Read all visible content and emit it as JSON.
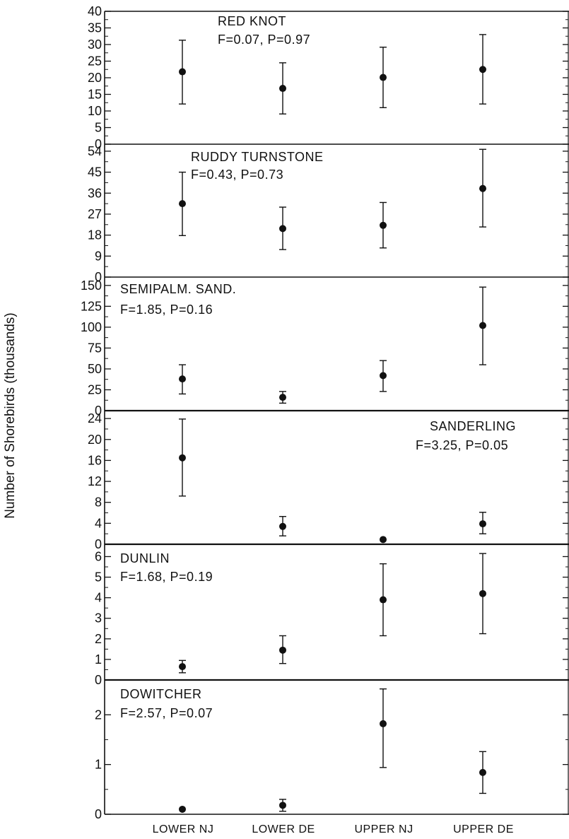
{
  "chart_data": {
    "type": "scatter",
    "ylabel": "Number of Shorebirds (thousands)",
    "categories": [
      "LOWER NJ",
      "LOWER DE",
      "UPPER NJ",
      "UPPER DE"
    ],
    "panels": [
      {
        "species": "RED KNOT",
        "stats": "F=0.07, P=0.97",
        "ylim": [
          0,
          40
        ],
        "yticks": [
          0,
          5,
          10,
          15,
          20,
          25,
          30,
          35,
          40
        ],
        "values": [
          21.8,
          16.8,
          20.1,
          22.5
        ],
        "error_low": [
          12.1,
          9.1,
          11.0,
          12.1
        ],
        "error_high": [
          31.3,
          24.5,
          29.2,
          33.0
        ]
      },
      {
        "species": "RUDDY TURNSTONE",
        "stats": "F=0.43, P=0.73",
        "ylim": [
          0,
          57
        ],
        "yticks": [
          0,
          9,
          18,
          27,
          36,
          45,
          54
        ],
        "values": [
          31.5,
          20.8,
          22.2,
          38.0
        ],
        "error_low": [
          17.8,
          11.8,
          12.5,
          21.5
        ],
        "error_high": [
          45.0,
          30.0,
          32.0,
          54.8
        ]
      },
      {
        "species": "SEMIPALM. SAND.",
        "stats": "F=1.85, P=0.16",
        "ylim": [
          0,
          160
        ],
        "yticks": [
          0,
          25,
          50,
          75,
          100,
          125,
          150
        ],
        "values": [
          38,
          16,
          42,
          102
        ],
        "error_low": [
          20,
          9,
          23,
          55
        ],
        "error_high": [
          55,
          23,
          60,
          148
        ]
      },
      {
        "species": "SANDERLING",
        "stats": "F=3.25, P=0.05",
        "ylim": [
          0,
          25.5
        ],
        "yticks": [
          0,
          4,
          8,
          12,
          16,
          20,
          24
        ],
        "values": [
          16.5,
          3.4,
          0.9,
          3.9
        ],
        "error_low": [
          9.2,
          1.6,
          0.9,
          2.0
        ],
        "error_high": [
          23.9,
          5.3,
          0.9,
          6.1
        ]
      },
      {
        "species": "DUNLIN",
        "stats": "F=1.68, P=0.19",
        "ylim": [
          0,
          6.6
        ],
        "yticks": [
          0,
          1,
          2,
          3,
          4,
          5,
          6
        ],
        "values": [
          0.65,
          1.45,
          3.9,
          4.2
        ],
        "error_low": [
          0.35,
          0.8,
          2.15,
          2.25
        ],
        "error_high": [
          0.95,
          2.15,
          5.65,
          6.15
        ]
      },
      {
        "species": "DOWITCHER",
        "stats": "F=2.57, P=0.07",
        "ylim": [
          0,
          2.7
        ],
        "yticks": [
          0,
          1,
          2
        ],
        "values": [
          0.1,
          0.18,
          1.82,
          0.84
        ],
        "error_low": [
          0.1,
          0.06,
          0.94,
          0.42
        ],
        "error_high": [
          0.1,
          0.3,
          2.52,
          1.26
        ]
      }
    ]
  }
}
